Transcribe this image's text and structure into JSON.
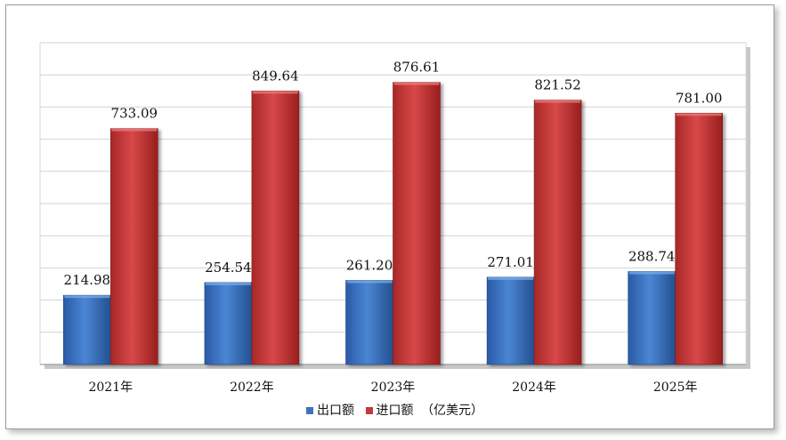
{
  "chart_data": {
    "type": "bar",
    "categories": [
      "2021年",
      "2022年",
      "2023年",
      "2024年",
      "2025年"
    ],
    "series": [
      {
        "name": "出口额",
        "values": [
          214.98,
          254.54,
          261.2,
          271.01,
          288.74
        ],
        "color": "#3d72c0"
      },
      {
        "name": "进口额",
        "values": [
          733.09,
          849.64,
          876.61,
          821.52,
          781.0
        ],
        "color": "#c43a3a"
      }
    ],
    "data_labels": {
      "series0": [
        "214.98",
        "254.54",
        "261.20",
        "271.01",
        "288.74"
      ],
      "series1": [
        "733.09",
        "849.64",
        "876.61",
        "821.52",
        "781.00"
      ]
    },
    "unit_note": "（亿美元）",
    "ylim": [
      0,
      1000
    ],
    "grid": true,
    "legend_position": "bottom"
  }
}
